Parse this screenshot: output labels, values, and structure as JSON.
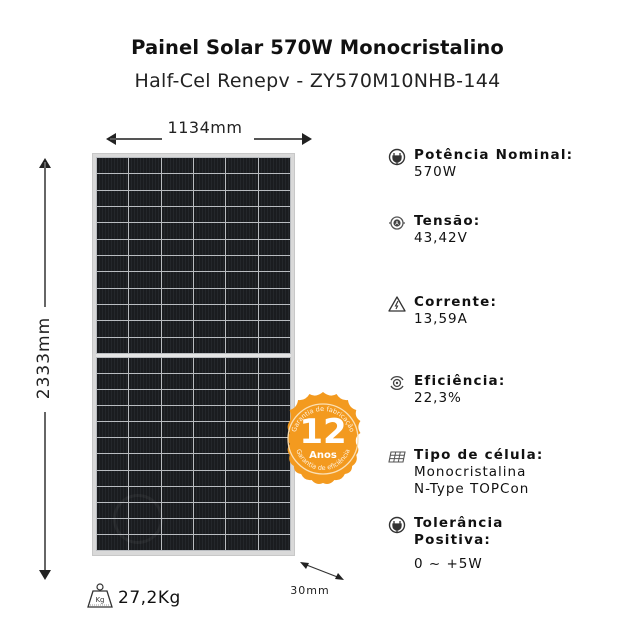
{
  "header": {
    "title": "Painel Solar 570W Monocristalino",
    "subtitle": "Half-Cel Renepv - ZY570M10NHB-144"
  },
  "dimensions": {
    "width": "1134mm",
    "height": "2333mm",
    "depth": "30mm",
    "weight": "27,2Kg"
  },
  "panel": {
    "columns": 6,
    "rows_per_half": 12,
    "frame_color": "#d9d9d9",
    "cell_color": "#1b1d20"
  },
  "badge": {
    "years": "12",
    "unit": "Anos",
    "top_text": "Garantia de fabricação",
    "bottom_text": "Garantia de eficiência",
    "color": "#f39a1f"
  },
  "specs": [
    {
      "icon": "plug-icon",
      "label": "Potência Nominal:",
      "value": "570W"
    },
    {
      "icon": "voltage-icon",
      "label": "Tensão:",
      "value": " 43,42V"
    },
    {
      "icon": "warning-lightning-icon",
      "label": "Corrente:",
      "value": "13,59A"
    },
    {
      "icon": "efficiency-icon",
      "label": "Eficiência:",
      "value": "22,3%"
    },
    {
      "icon": "solar-cell-icon",
      "label": "Tipo de célula:",
      "value": "Monocristalina",
      "value2": "N-Type TOPCon"
    },
    {
      "icon": "plug-icon",
      "label": "Tolerância",
      "label2": "Positiva:",
      "value": "0 ~ +5W"
    }
  ]
}
